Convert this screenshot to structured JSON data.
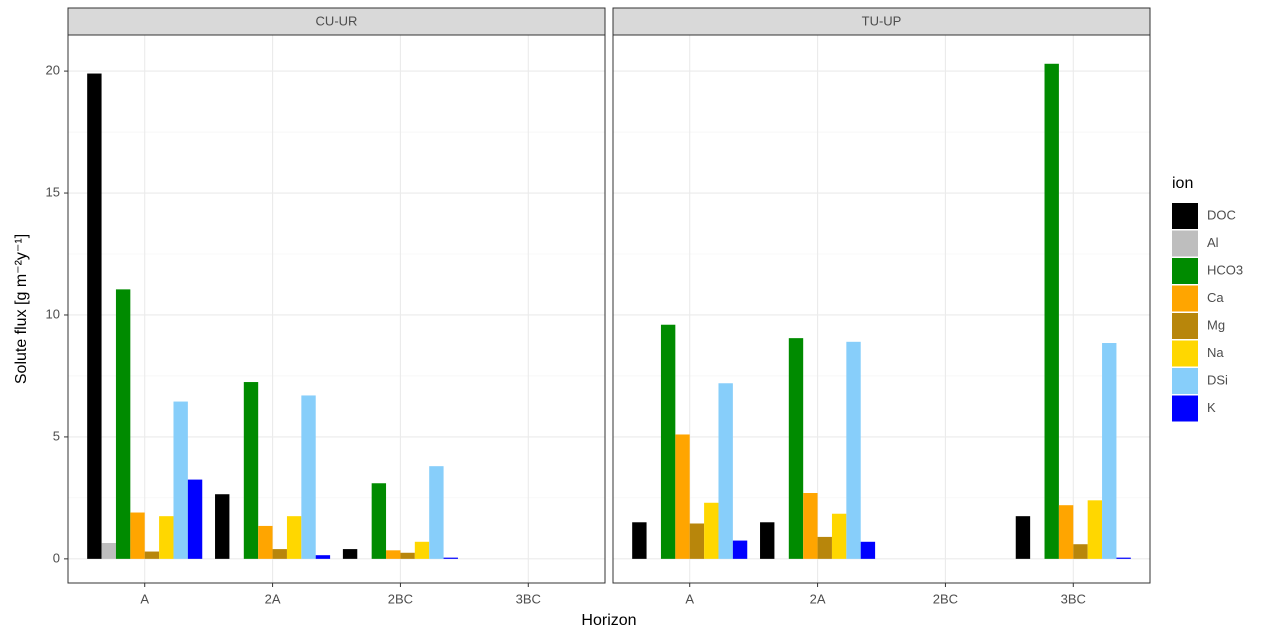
{
  "chart_data": {
    "type": "bar",
    "x_label": "Horizon",
    "y_label": "Solute flux [g m⁻²y⁻¹]",
    "legend_title": "ion",
    "panels": [
      "CU-UR",
      "TU-UP"
    ],
    "categories": [
      "A",
      "2A",
      "2BC",
      "3BC"
    ],
    "ylim": [
      -0.99,
      21.48
    ],
    "yticks": [
      0,
      5,
      10,
      15,
      20
    ],
    "grid": true,
    "series": [
      {
        "name": "DOC",
        "color": "#000000",
        "values": [
          [
            19.9,
            2.65,
            0.4,
            null
          ],
          [
            1.5,
            1.5,
            null,
            1.75
          ]
        ]
      },
      {
        "name": "Al",
        "color": "#bebebe",
        "values": [
          [
            0.65,
            0,
            0,
            null
          ],
          [
            0,
            0,
            null,
            0
          ]
        ]
      },
      {
        "name": "HCO3",
        "color": "#008b00",
        "values": [
          [
            11.05,
            7.25,
            3.1,
            null
          ],
          [
            9.6,
            9.05,
            null,
            20.3
          ]
        ]
      },
      {
        "name": "Ca",
        "color": "#ffa500",
        "values": [
          [
            1.9,
            1.35,
            0.35,
            null
          ],
          [
            5.1,
            2.7,
            null,
            2.2
          ]
        ]
      },
      {
        "name": "Mg",
        "color": "#b8860b",
        "values": [
          [
            0.3,
            0.4,
            0.25,
            null
          ],
          [
            1.45,
            0.9,
            null,
            0.6
          ]
        ]
      },
      {
        "name": "Na",
        "color": "#ffd700",
        "values": [
          [
            1.75,
            1.75,
            0.7,
            null
          ],
          [
            2.3,
            1.85,
            null,
            2.4
          ]
        ]
      },
      {
        "name": "DSi",
        "color": "#87cefa",
        "values": [
          [
            6.45,
            6.7,
            3.8,
            null
          ],
          [
            7.2,
            8.9,
            null,
            8.85
          ]
        ]
      },
      {
        "name": "K",
        "color": "#0000ff",
        "values": [
          [
            3.25,
            0.15,
            0.05,
            null
          ],
          [
            0.75,
            0.7,
            null,
            0.05
          ]
        ]
      }
    ]
  }
}
